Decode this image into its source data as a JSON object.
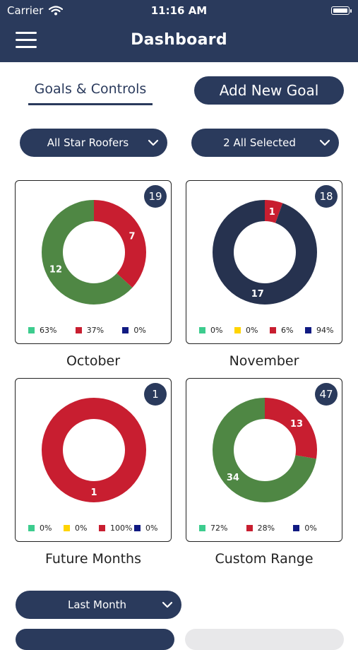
{
  "status_bar": {
    "carrier": "Carrier",
    "time": "11:16 AM"
  },
  "header": {
    "title": "Dashboard"
  },
  "tabs": {
    "goals_controls": "Goals & Controls"
  },
  "actions": {
    "add_new_goal": "Add New Goal"
  },
  "filters": {
    "roofers": "All Star Roofers",
    "selection": "2 All Selected",
    "period": "Last Month"
  },
  "colors": {
    "navy": "#2a3a5c",
    "green": "#4f8744",
    "red": "#c81e30",
    "mint": "#3dcc8e",
    "yellow": "#ffd400",
    "blue": "#101a82"
  },
  "cards": [
    {
      "label": "October",
      "total": "19",
      "slices": [
        {
          "value": 7,
          "color": "#c81e30",
          "label": "7"
        },
        {
          "value": 12,
          "color": "#4f8744",
          "label": "12"
        }
      ],
      "legend": [
        {
          "color": "#3dcc8e",
          "text": "63%"
        },
        {
          "color": "#c81e30",
          "text": "37%"
        },
        {
          "color": "#101a82",
          "text": "0%"
        }
      ]
    },
    {
      "label": "November",
      "total": "18",
      "slices": [
        {
          "value": 1,
          "color": "#c81e30",
          "label": "1"
        },
        {
          "value": 17,
          "color": "#26324f",
          "label": "17"
        }
      ],
      "legend": [
        {
          "color": "#3dcc8e",
          "text": "0%"
        },
        {
          "color": "#ffd400",
          "text": "0%"
        },
        {
          "color": "#c81e30",
          "text": "6%"
        },
        {
          "color": "#101a82",
          "text": "94%"
        }
      ]
    },
    {
      "label": "Future Months",
      "total": "1",
      "slices": [
        {
          "value": 1,
          "color": "#c81e30",
          "label": "1"
        }
      ],
      "legend": [
        {
          "color": "#3dcc8e",
          "text": "0%"
        },
        {
          "color": "#ffd400",
          "text": "0%"
        },
        {
          "color": "#c81e30",
          "text": "100%"
        },
        {
          "color": "#101a82",
          "text": "0%"
        }
      ]
    },
    {
      "label": "Custom Range",
      "total": "47",
      "slices": [
        {
          "value": 13,
          "color": "#c81e30",
          "label": "13"
        },
        {
          "value": 34,
          "color": "#4f8744",
          "label": "34"
        }
      ],
      "legend": [
        {
          "color": "#3dcc8e",
          "text": "72%"
        },
        {
          "color": "#c81e30",
          "text": "28%"
        },
        {
          "color": "#101a82",
          "text": "0%"
        }
      ]
    }
  ]
}
